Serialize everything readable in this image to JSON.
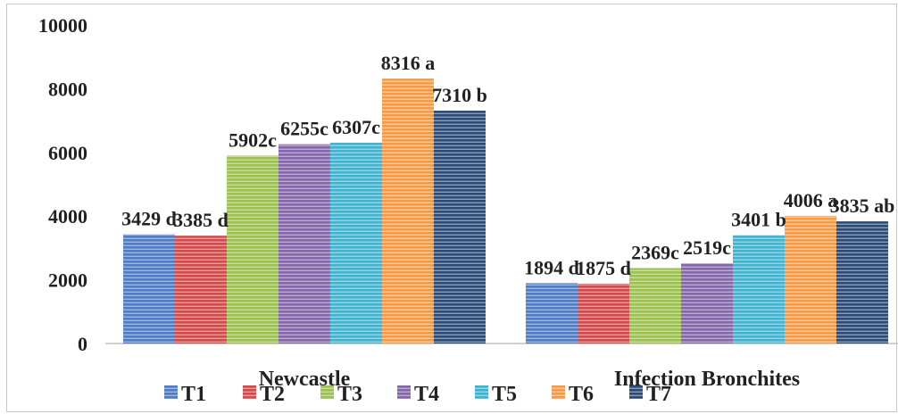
{
  "chart_data": {
    "type": "bar",
    "categories": [
      "Newcastle",
      "Infection Bronchites"
    ],
    "ylim": [
      0,
      10000
    ],
    "yticks": [
      0,
      2000,
      4000,
      6000,
      8000,
      10000
    ],
    "title": "",
    "xlabel": "",
    "ylabel": "",
    "grid": false,
    "legend": "bottom",
    "series": [
      {
        "name": "T1",
        "color": "#4f7cc4",
        "values": [
          3429,
          1894
        ],
        "labels": [
          "3429 d",
          "1894 d"
        ]
      },
      {
        "name": "T2",
        "color": "#d44a4a",
        "values": [
          3385,
          1875
        ],
        "labels": [
          "3385 d",
          "1875 d"
        ]
      },
      {
        "name": "T3",
        "color": "#9bc14f",
        "values": [
          5902,
          2369
        ],
        "labels": [
          "5902c",
          "2369c"
        ]
      },
      {
        "name": "T4",
        "color": "#8466ac",
        "values": [
          6255,
          2519
        ],
        "labels": [
          "6255c",
          "2519c"
        ]
      },
      {
        "name": "T5",
        "color": "#40b3cf",
        "values": [
          6307,
          3401
        ],
        "labels": [
          "6307c",
          "3401 b"
        ]
      },
      {
        "name": "T6",
        "color": "#f59a45",
        "values": [
          8316,
          4006
        ],
        "labels": [
          "8316 a",
          "4006 a"
        ]
      },
      {
        "name": "T7",
        "color": "#2b4a78",
        "values": [
          7310,
          3835
        ],
        "labels": [
          "7310 b",
          "3835 ab"
        ]
      }
    ]
  }
}
